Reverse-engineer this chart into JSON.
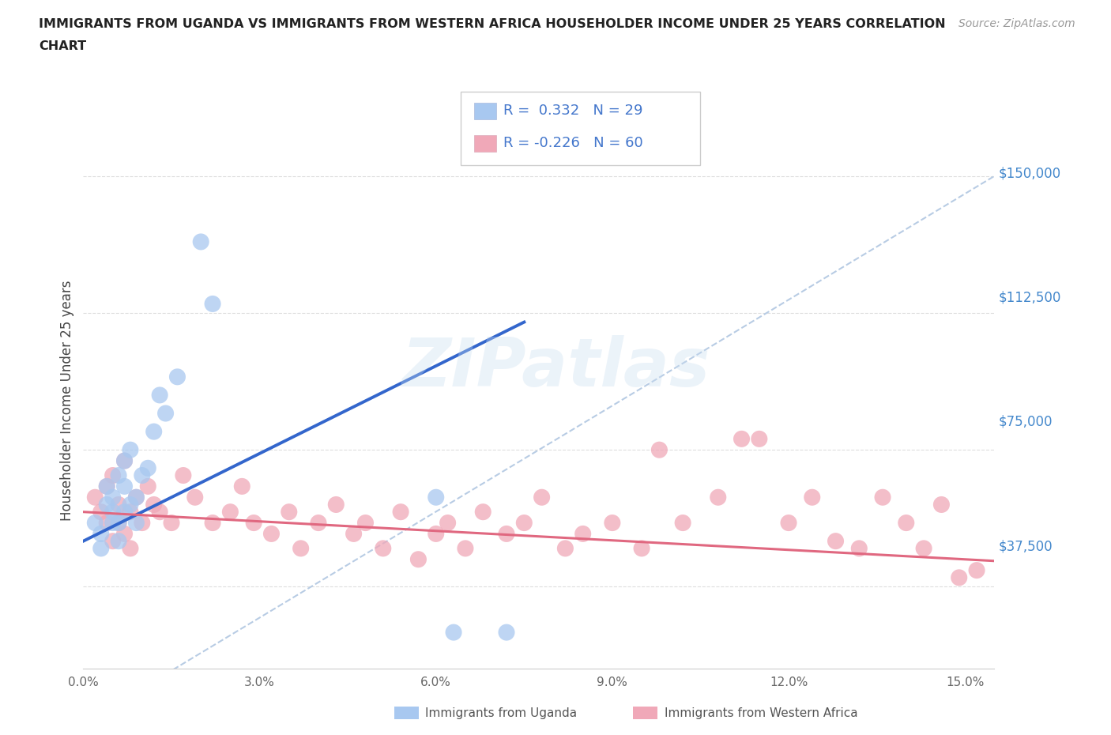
{
  "title_line1": "IMMIGRANTS FROM UGANDA VS IMMIGRANTS FROM WESTERN AFRICA HOUSEHOLDER INCOME UNDER 25 YEARS CORRELATION",
  "title_line2": "CHART",
  "source": "Source: ZipAtlas.com",
  "ylabel": "Householder Income Under 25 years",
  "legend_label1": "Immigrants from Uganda",
  "legend_label2": "Immigrants from Western Africa",
  "R1": 0.332,
  "N1": 29,
  "R2": -0.226,
  "N2": 60,
  "color_uganda": "#a8c8f0",
  "color_west_africa": "#f0a8b8",
  "color_uganda_line": "#3366cc",
  "color_west_africa_line": "#e06880",
  "color_dashed": "#b8cce4",
  "ytick_values": [
    0,
    37500,
    75000,
    112500,
    150000
  ],
  "ytick_labels": [
    "",
    "$37,500",
    "$75,000",
    "$112,500",
    "$150,000"
  ],
  "xtick_values": [
    0.0,
    0.03,
    0.06,
    0.09,
    0.12,
    0.15
  ],
  "xtick_labels": [
    "0.0%",
    "3.0%",
    "6.0%",
    "9.0%",
    "12.0%",
    "15.0%"
  ],
  "xlim": [
    0.0,
    0.155
  ],
  "ylim": [
    15000,
    162000
  ],
  "uganda_x": [
    0.002,
    0.003,
    0.003,
    0.004,
    0.004,
    0.005,
    0.005,
    0.005,
    0.006,
    0.006,
    0.006,
    0.007,
    0.007,
    0.007,
    0.008,
    0.008,
    0.009,
    0.009,
    0.01,
    0.011,
    0.012,
    0.013,
    0.014,
    0.016,
    0.02,
    0.022,
    0.06,
    0.063,
    0.072
  ],
  "uganda_y": [
    55000,
    52000,
    48000,
    60000,
    65000,
    58000,
    62000,
    55000,
    68000,
    50000,
    55000,
    72000,
    65000,
    58000,
    75000,
    60000,
    55000,
    62000,
    68000,
    70000,
    80000,
    90000,
    85000,
    95000,
    132000,
    115000,
    62000,
    25000,
    25000
  ],
  "west_africa_x": [
    0.002,
    0.003,
    0.004,
    0.004,
    0.005,
    0.005,
    0.006,
    0.006,
    0.007,
    0.007,
    0.008,
    0.008,
    0.009,
    0.01,
    0.011,
    0.012,
    0.013,
    0.015,
    0.017,
    0.019,
    0.022,
    0.025,
    0.027,
    0.029,
    0.032,
    0.035,
    0.037,
    0.04,
    0.043,
    0.046,
    0.048,
    0.051,
    0.054,
    0.057,
    0.06,
    0.062,
    0.065,
    0.068,
    0.072,
    0.075,
    0.078,
    0.082,
    0.085,
    0.09,
    0.095,
    0.098,
    0.102,
    0.108,
    0.112,
    0.115,
    0.12,
    0.124,
    0.128,
    0.132,
    0.136,
    0.14,
    0.143,
    0.146,
    0.149,
    0.152
  ],
  "west_africa_y": [
    62000,
    58000,
    55000,
    65000,
    50000,
    68000,
    55000,
    60000,
    52000,
    72000,
    58000,
    48000,
    62000,
    55000,
    65000,
    60000,
    58000,
    55000,
    68000,
    62000,
    55000,
    58000,
    65000,
    55000,
    52000,
    58000,
    48000,
    55000,
    60000,
    52000,
    55000,
    48000,
    58000,
    45000,
    52000,
    55000,
    48000,
    58000,
    52000,
    55000,
    62000,
    48000,
    52000,
    55000,
    48000,
    75000,
    55000,
    62000,
    78000,
    78000,
    55000,
    62000,
    50000,
    48000,
    62000,
    55000,
    48000,
    60000,
    40000,
    42000
  ]
}
